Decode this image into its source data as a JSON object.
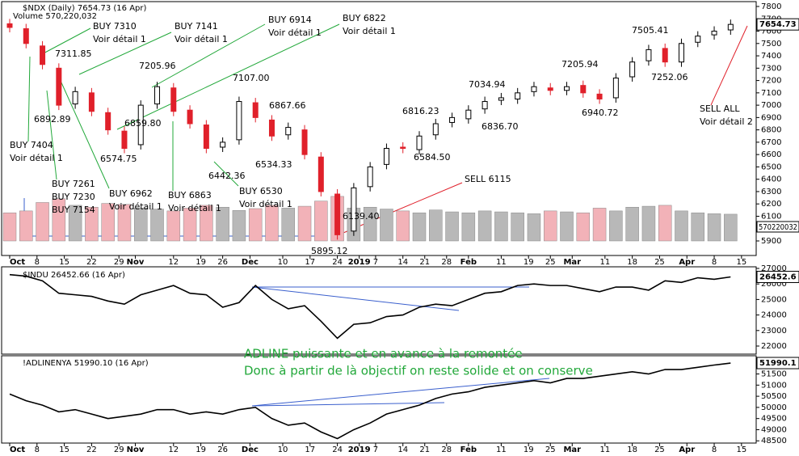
{
  "chart_data": [
    {
      "type": "candlestick",
      "title": "$NDX (Daily) 7654.73 (16 Apr)",
      "last_label": "7654.73",
      "x": [
        0,
        3,
        6,
        9,
        12,
        15,
        18,
        21,
        24,
        27,
        30,
        33,
        36,
        39,
        42,
        45,
        48,
        51,
        54,
        57,
        60,
        63,
        66,
        69,
        72,
        75,
        78,
        81,
        84,
        87,
        90,
        93,
        96,
        99,
        102,
        105,
        108,
        111,
        114,
        117,
        120,
        123,
        126,
        129,
        132
      ],
      "open": [
        7660,
        7620,
        7480,
        7300,
        7010,
        7100,
        6940,
        6790,
        6680,
        7010,
        7140,
        6960,
        6840,
        6660,
        6720,
        7020,
        6880,
        6760,
        6800,
        6580,
        6280,
        5980,
        6340,
        6520,
        6660,
        6640,
        6760,
        6860,
        6890,
        6970,
        7040,
        7050,
        7110,
        7140,
        7120,
        7160,
        7090,
        7060,
        7230,
        7360,
        7460,
        7350,
        7510,
        7570,
        7610
      ],
      "close": [
        7630,
        7500,
        7330,
        7000,
        7110,
        6950,
        6800,
        6650,
        7000,
        7150,
        6950,
        6850,
        6650,
        6700,
        7030,
        6900,
        6750,
        6820,
        6600,
        6300,
        5950,
        6330,
        6500,
        6650,
        6650,
        6750,
        6850,
        6900,
        6960,
        7030,
        7060,
        7100,
        7150,
        7120,
        7150,
        7100,
        7050,
        7220,
        7350,
        7450,
        7350,
        7500,
        7560,
        7600,
        7654.73
      ],
      "up_color": "#000000",
      "down_color": "#e0202a",
      "volume": {
        "name": "Volume 570,220,032",
        "last_label": "570220032",
        "ylim": [
          0,
          5000000000
        ],
        "up_color": "#b8b8b8",
        "down_color": "#f2b2b8",
        "values": [
          600000000,
          640000000,
          820000000,
          900000000,
          760000000,
          720000000,
          800000000,
          780000000,
          700000000,
          680000000,
          640000000,
          700000000,
          760000000,
          720000000,
          650000000,
          690000000,
          760000000,
          700000000,
          740000000,
          850000000,
          950000000,
          700000000,
          720000000,
          680000000,
          640000000,
          600000000,
          660000000,
          620000000,
          600000000,
          640000000,
          620000000,
          600000000,
          580000000,
          640000000,
          620000000,
          600000000,
          700000000,
          640000000,
          720000000,
          740000000,
          760000000,
          640000000,
          600000000,
          580000000,
          570220032
        ]
      },
      "xlim": [
        0,
        136
      ],
      "xticks": [
        {
          "value": 0,
          "label": "Oct"
        },
        {
          "value": 5,
          "label": "8"
        },
        {
          "value": 10,
          "label": "15"
        },
        {
          "value": 15,
          "label": "22"
        },
        {
          "value": 20,
          "label": "29"
        },
        {
          "value": 23,
          "label": "Nov"
        },
        {
          "value": 30,
          "label": "12"
        },
        {
          "value": 35,
          "label": "19"
        },
        {
          "value": 39,
          "label": "26"
        },
        {
          "value": 44,
          "label": "Dec"
        },
        {
          "value": 50,
          "label": "10"
        },
        {
          "value": 55,
          "label": "17"
        },
        {
          "value": 60,
          "label": "24"
        },
        {
          "value": 64,
          "label": "2019"
        },
        {
          "value": 67,
          "label": "7"
        },
        {
          "value": 72,
          "label": "14"
        },
        {
          "value": 76,
          "label": "21"
        },
        {
          "value": 80,
          "label": "28"
        },
        {
          "value": 84,
          "label": "Feb"
        },
        {
          "value": 90,
          "label": "11"
        },
        {
          "value": 95,
          "label": "19"
        },
        {
          "value": 99,
          "label": "25"
        },
        {
          "value": 103,
          "label": "Mar"
        },
        {
          "value": 109,
          "label": "11"
        },
        {
          "value": 114,
          "label": "18"
        },
        {
          "value": 119,
          "label": "25"
        },
        {
          "value": 124,
          "label": "Apr"
        },
        {
          "value": 129,
          "label": "8"
        },
        {
          "value": 134,
          "label": "15"
        }
      ],
      "ylim": [
        5900,
        7800
      ],
      "yticks": [
        5900,
        6000,
        6100,
        6200,
        6300,
        6400,
        6500,
        6600,
        6700,
        6800,
        6900,
        7000,
        7100,
        7200,
        7300,
        7400,
        7500,
        7600,
        7700,
        7800
      ],
      "annotations": [
        {
          "color": "#22a83a",
          "lines": [
            "BUY 7310",
            "Voir détail 1"
          ]
        },
        {
          "color": "#22a83a",
          "lines": [
            "BUY 7141",
            "Voir détail 1"
          ]
        },
        {
          "color": "#22a83a",
          "lines": [
            "BUY 6914",
            "Voir détail 1"
          ]
        },
        {
          "color": "#22a83a",
          "lines": [
            "BUY 6822",
            "Voir détail 1"
          ]
        },
        {
          "color": "#22a83a",
          "lines": [
            "BUY 7404",
            "Voir détail 1"
          ]
        },
        {
          "color": "#22a83a",
          "lines": [
            "BUY 7261",
            "BUY 7230",
            "BUY 7154"
          ]
        },
        {
          "color": "#22a83a",
          "lines": [
            "BUY 6962",
            "Voir détail 1"
          ]
        },
        {
          "color": "#22a83a",
          "lines": [
            "BUY 6863",
            "Voir détail 1"
          ]
        },
        {
          "color": "#22a83a",
          "lines": [
            "BUY 6530",
            "Voir détail 1"
          ]
        },
        {
          "color": "#e0202a",
          "lines": [
            "SELL 6115"
          ]
        },
        {
          "color": "#e0202a",
          "lines": [
            "SELL ALL",
            "Voir détail 2"
          ]
        },
        {
          "color": "#000000",
          "lines": [
            "7311.85"
          ]
        },
        {
          "color": "#000000",
          "lines": [
            "7205.96"
          ]
        },
        {
          "color": "#000000",
          "lines": [
            "7107.00"
          ]
        },
        {
          "color": "#000000",
          "lines": [
            "6892.89"
          ]
        },
        {
          "color": "#000000",
          "lines": [
            "6859.80"
          ]
        },
        {
          "color": "#000000",
          "lines": [
            "6867.66"
          ]
        },
        {
          "color": "#000000",
          "lines": [
            "6574.75"
          ]
        },
        {
          "color": "#000000",
          "lines": [
            "6442.36"
          ]
        },
        {
          "color": "#000000",
          "lines": [
            "6534.33"
          ]
        },
        {
          "color": "#000000",
          "lines": [
            "6816.23"
          ]
        },
        {
          "color": "#000000",
          "lines": [
            "7034.94"
          ]
        },
        {
          "color": "#000000",
          "lines": [
            "6836.70"
          ]
        },
        {
          "color": "#000000",
          "lines": [
            "6584.50"
          ]
        },
        {
          "color": "#000000",
          "lines": [
            "6139.40"
          ]
        },
        {
          "color": "#000000",
          "lines": [
            "5895.12"
          ]
        },
        {
          "color": "#000000",
          "lines": [
            "7205.94"
          ]
        },
        {
          "color": "#000000",
          "lines": [
            "6940.72"
          ]
        },
        {
          "color": "#000000",
          "lines": [
            "7505.41"
          ]
        },
        {
          "color": "#000000",
          "lines": [
            "7252.06"
          ]
        }
      ]
    },
    {
      "type": "line",
      "title": "$INDU 26452.66 (16 Apr)",
      "last_label": "26452.6",
      "x": [
        0,
        3,
        6,
        9,
        12,
        15,
        18,
        21,
        24,
        27,
        30,
        33,
        36,
        39,
        42,
        45,
        48,
        51,
        54,
        57,
        60,
        63,
        66,
        69,
        72,
        75,
        78,
        81,
        84,
        87,
        90,
        93,
        96,
        99,
        102,
        105,
        108,
        111,
        114,
        117,
        120,
        123,
        126,
        129,
        132
      ],
      "series": [
        {
          "name": "$INDU",
          "color": "#000000",
          "values": [
            26600,
            26500,
            26200,
            25400,
            25300,
            25200,
            24900,
            24700,
            25300,
            25600,
            25900,
            25400,
            25300,
            24500,
            24800,
            25900,
            25000,
            24400,
            24600,
            23600,
            22500,
            23400,
            23500,
            23900,
            24000,
            24500,
            24700,
            24600,
            25000,
            25400,
            25500,
            25900,
            26000,
            25900,
            25900,
            25700,
            25500,
            25800,
            25800,
            25600,
            26200,
            26100,
            26400,
            26300,
            26452.66
          ]
        }
      ],
      "xlim": [
        0,
        136
      ],
      "ylim": [
        21500,
        27000
      ],
      "yticks": [
        22000,
        23000,
        24000,
        25000,
        26000,
        27000
      ]
    },
    {
      "type": "line",
      "title": "!ADLINENYA 51990.10 (16 Apr)",
      "last_label": "51990.1",
      "x": [
        0,
        3,
        6,
        9,
        12,
        15,
        18,
        21,
        24,
        27,
        30,
        33,
        36,
        39,
        42,
        45,
        48,
        51,
        54,
        57,
        60,
        63,
        66,
        69,
        72,
        75,
        78,
        81,
        84,
        87,
        90,
        93,
        96,
        99,
        102,
        105,
        108,
        111,
        114,
        117,
        120,
        123,
        126,
        129,
        132
      ],
      "series": [
        {
          "name": "!ADLINENYA",
          "color": "#000000",
          "values": [
            50600,
            50300,
            50100,
            49800,
            49900,
            49700,
            49500,
            49600,
            49700,
            49900,
            49900,
            49700,
            49800,
            49700,
            49900,
            50000,
            49500,
            49200,
            49300,
            48900,
            48600,
            49000,
            49300,
            49700,
            49900,
            50100,
            50400,
            50600,
            50700,
            50900,
            51000,
            51100,
            51200,
            51100,
            51300,
            51300,
            51400,
            51500,
            51600,
            51500,
            51700,
            51700,
            51800,
            51900,
            51990.1
          ]
        }
      ],
      "xlim": [
        0,
        136
      ],
      "ylim": [
        48400,
        52100
      ],
      "yticks": [
        48500,
        49000,
        49500,
        50000,
        50500,
        51000,
        51500,
        52000
      ],
      "annotations": [
        {
          "color": "#22a83a",
          "lines": [
            "ADLINE puissante et en avance à la remontée",
            "Donc à partir de là objectif on reste solide et on conserve"
          ]
        }
      ]
    }
  ]
}
